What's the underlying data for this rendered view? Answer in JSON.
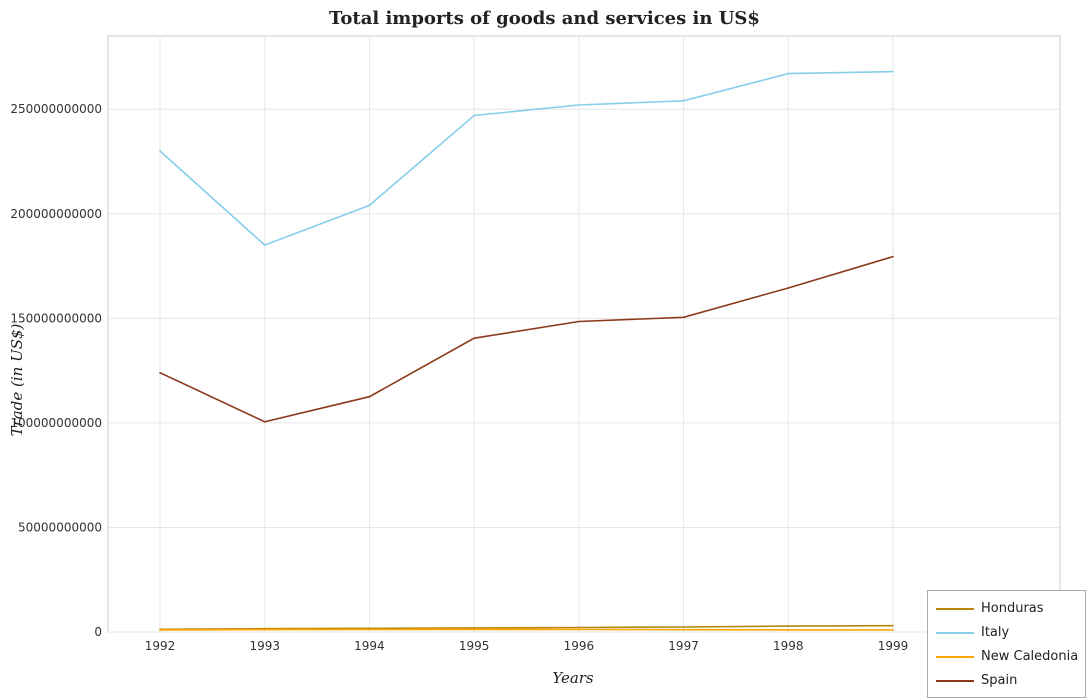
{
  "title": "Total imports of goods and services in US$",
  "chart_data": {
    "type": "line",
    "title": "Total imports of goods and services in US$",
    "xlabel": "Years",
    "ylabel": "Trade (in US$)",
    "x": [
      "1992",
      "1993",
      "1994",
      "1995",
      "1996",
      "1997",
      "1998",
      "1999"
    ],
    "ylim": [
      0,
      285000000000
    ],
    "yticks": [
      0,
      50000000000,
      100000000000,
      150000000000,
      200000000000,
      250000000000
    ],
    "ytick_labels": [
      "0",
      "50000000000",
      "100000000000",
      "150000000000",
      "200000000000",
      "250000000000"
    ],
    "grid": true,
    "legend_position": "bottom-right",
    "series": [
      {
        "name": "Honduras",
        "color": "#b8860b",
        "values": [
          1300000000,
          1600000000,
          1750000000,
          1950000000,
          2150000000,
          2400000000,
          2800000000,
          3000000000
        ]
      },
      {
        "name": "Italy",
        "color": "#87ceeb",
        "values": [
          230000000000,
          185000000000,
          204000000000,
          247000000000,
          252000000000,
          254000000000,
          267000000000,
          268000000000
        ]
      },
      {
        "name": "New Caledonia",
        "color": "#ffa500",
        "values": [
          1000000000,
          1150000000,
          1200000000,
          1250000000,
          1200000000,
          1100000000,
          1000000000,
          1000000000
        ]
      },
      {
        "name": "Spain",
        "color": "#8b3a1a",
        "values": [
          124000000000,
          100500000000,
          112500000000,
          140500000000,
          148500000000,
          150500000000,
          164500000000,
          179500000000
        ]
      }
    ]
  }
}
